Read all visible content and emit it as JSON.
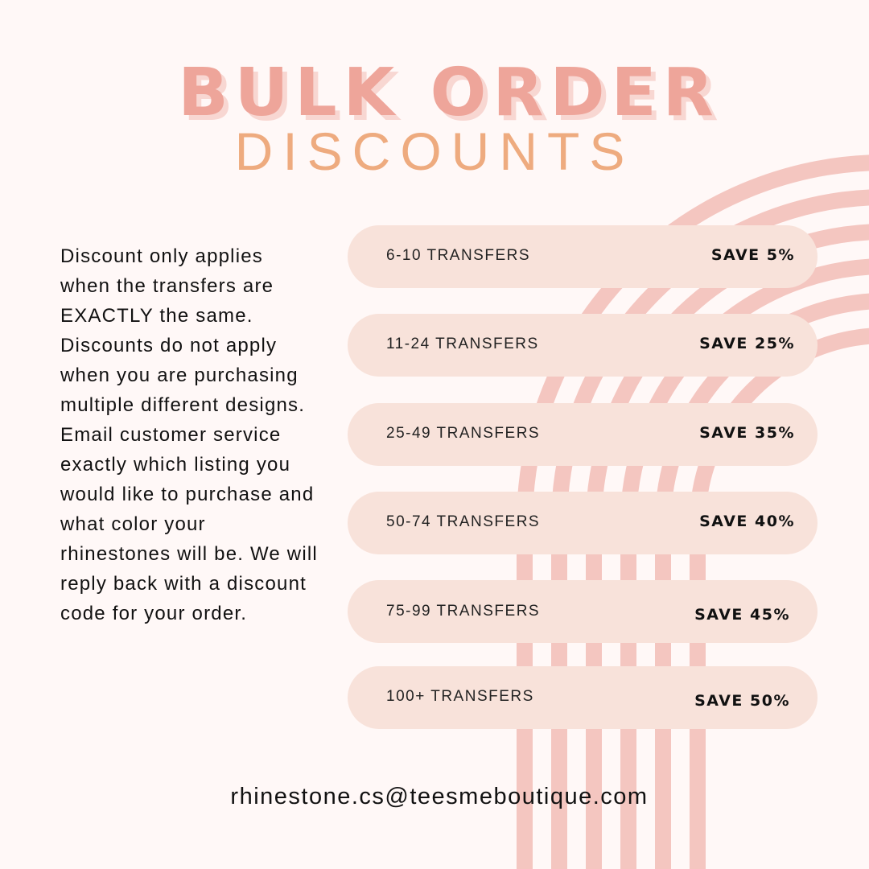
{
  "title": {
    "line1": "BULK ORDER",
    "line2": "DISCOUNTS"
  },
  "description": "Discount only applies when the transfers are EXACTLY the same. Discounts do not apply when you are purchasing multiple different designs. Email customer service exactly which listing you would like to purchase and what color your rhinestones will be. We will reply back with a discount code for your order.",
  "tiers": [
    {
      "quantity": "6-10 TRANSFERS",
      "discount": "SAVE 5%"
    },
    {
      "quantity": "11-24 TRANSFERS",
      "discount": "SAVE 25%"
    },
    {
      "quantity": "25-49 TRANSFERS",
      "discount": "SAVE 35%"
    },
    {
      "quantity": "50-74 TRANSFERS",
      "discount": "SAVE 40%"
    },
    {
      "quantity": "75-99 TRANSFERS",
      "discount": "SAVE 45%"
    },
    {
      "quantity": "100+ TRANSFERS",
      "discount": "SAVE 50%"
    }
  ],
  "email": "rhinestone.cs@teesmeboutique.com",
  "colors": {
    "background": "#fff8f7",
    "title": "#eea59a",
    "subtitle": "#eeab7f",
    "arches": "#f4c6c0",
    "pill": "#f8e2da"
  }
}
